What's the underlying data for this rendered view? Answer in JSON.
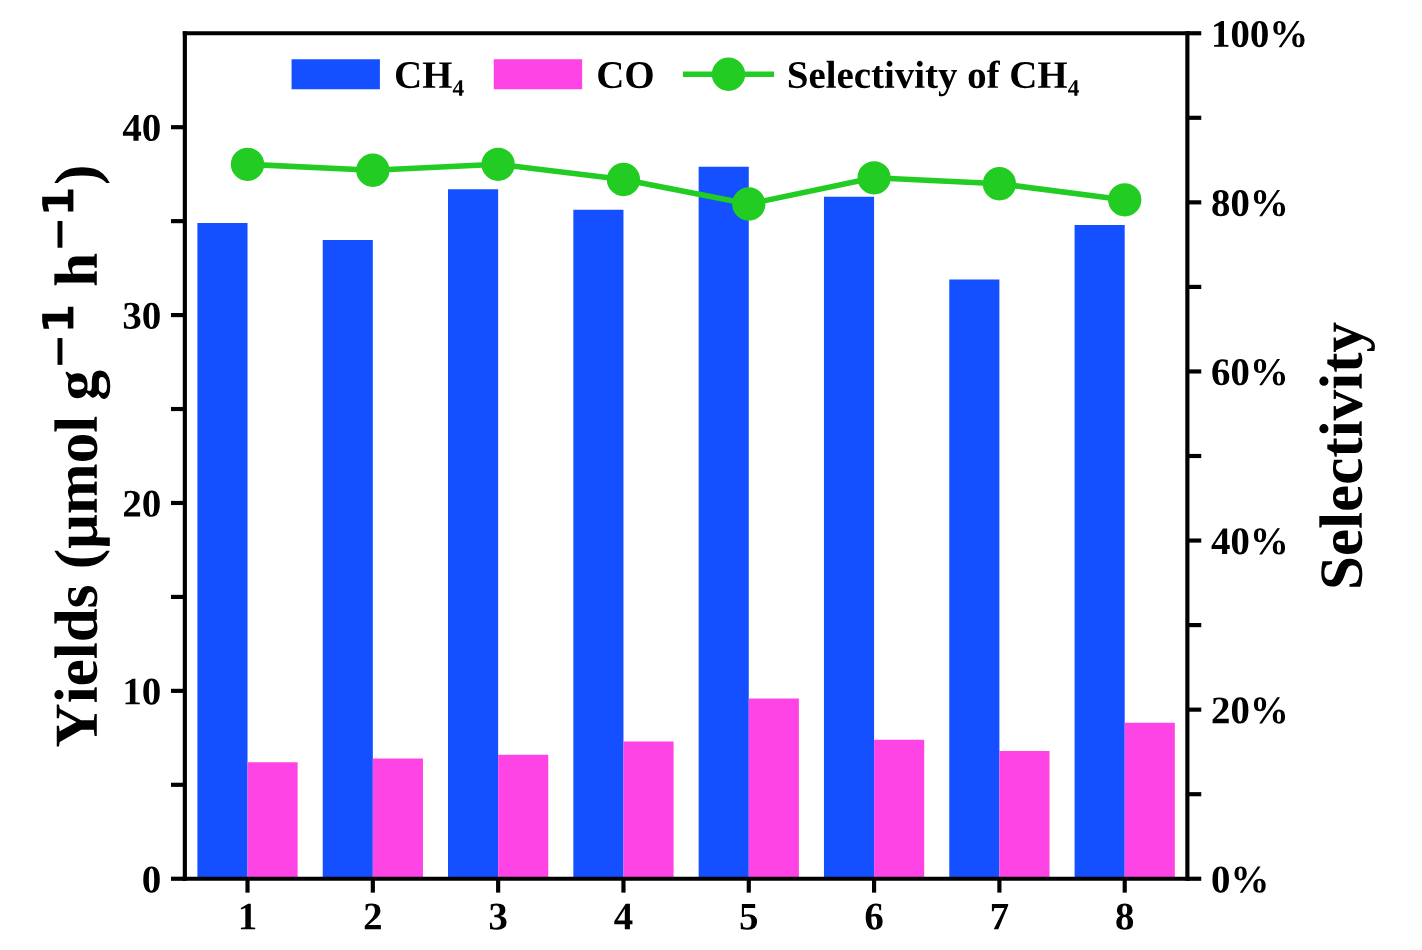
{
  "chart_data": {
    "type": "bar",
    "categories": [
      "1",
      "2",
      "3",
      "4",
      "5",
      "6",
      "7",
      "8"
    ],
    "ylabel": "Yields (μmol g$^{−1}$ h$^{−1}$)",
    "y2label": "Selectivity",
    "ylim": [
      0,
      45
    ],
    "yticks": [
      0,
      {
        "value": 5,
        "label": null
      },
      10,
      {
        "value": 15,
        "label": null
      },
      20,
      {
        "value": 25,
        "label": null
      },
      30,
      {
        "value": 35,
        "label": null
      },
      40
    ],
    "y2lim": [
      0,
      100
    ],
    "y2ticks": [
      {
        "value": 0,
        "label": "0%"
      },
      {
        "value": 10,
        "label": null
      },
      {
        "value": 20,
        "label": "20%"
      },
      {
        "value": 30,
        "label": null
      },
      {
        "value": 40,
        "label": "40%"
      },
      {
        "value": 50,
        "label": null
      },
      {
        "value": 60,
        "label": "60%"
      },
      {
        "value": 70,
        "label": null
      },
      {
        "value": 80,
        "label": "80%"
      },
      {
        "value": 90,
        "label": null
      },
      {
        "value": 100,
        "label": "100%"
      }
    ],
    "legend": "top",
    "grid": false,
    "series": [
      {
        "name": "CH₄",
        "color": "#1450ff",
        "values": [
          34.9,
          34.0,
          36.7,
          35.6,
          37.9,
          36.3,
          31.9,
          34.8
        ]
      },
      {
        "name": "CO",
        "color": "#ff44e6",
        "values": [
          6.2,
          6.4,
          6.6,
          7.3,
          9.6,
          7.4,
          6.8,
          8.3
        ]
      },
      {
        "name": "Selectivity of CH₄",
        "type": "line",
        "axis": "y2",
        "color": "#22cc22",
        "marker": "circle",
        "values": [
          84.5,
          83.8,
          84.5,
          82.7,
          79.8,
          82.9,
          82.2,
          80.3
        ]
      }
    ]
  }
}
